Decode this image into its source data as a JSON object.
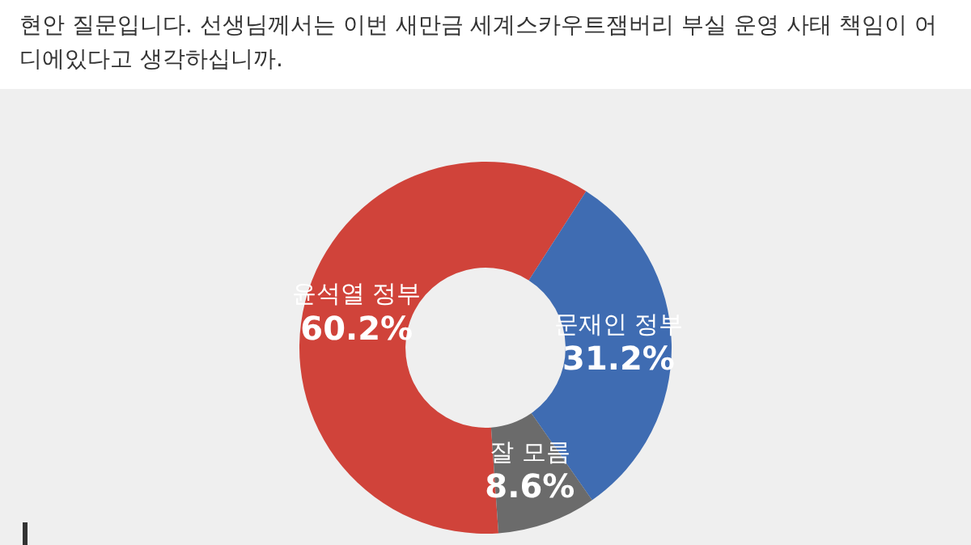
{
  "chart_data": {
    "type": "donut",
    "title": "현안 질문입니다. 선생님께서는 이번 새만금 세계스카우트잼버리 부실 운영 사태 책임이 어디에있다고 생각하십니까.",
    "categories": [
      "윤석열 정부",
      "문재인 정부",
      "잘 모름"
    ],
    "values": [
      60.2,
      31.2,
      8.6
    ],
    "value_labels": [
      "60.2%",
      "31.2%",
      "8.6%"
    ],
    "colors": [
      "#d0433a",
      "#3f6cb2",
      "#6b6b6b"
    ],
    "legend": false
  }
}
